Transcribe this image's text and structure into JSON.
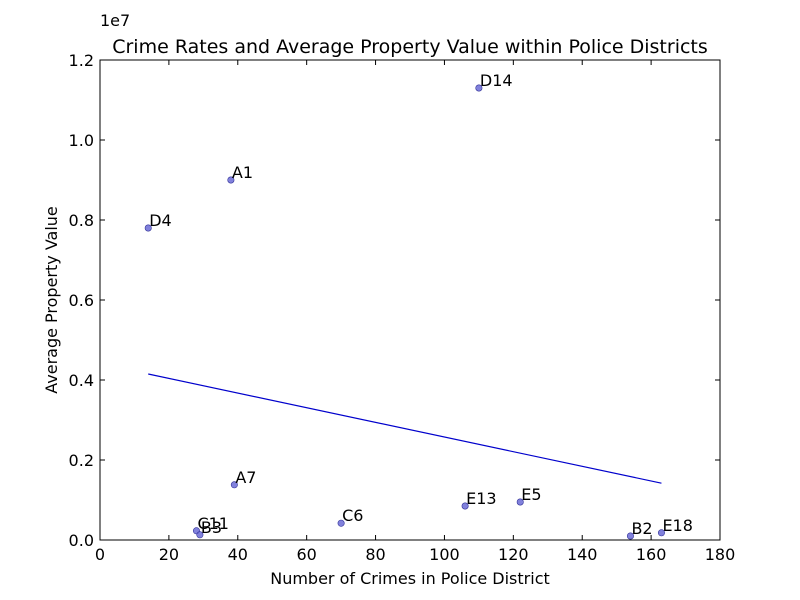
{
  "chart_data": {
    "type": "scatter",
    "title": "Crime Rates and Average Property Value within Police Districts",
    "xlabel": "Number of Crimes in Police District",
    "ylabel": "Average Property Value",
    "y_offset_label": "1e7",
    "xlim": [
      0,
      180
    ],
    "ylim": [
      0,
      12000000
    ],
    "x_ticks": [
      0,
      20,
      40,
      60,
      80,
      100,
      120,
      140,
      160,
      180
    ],
    "x_tick_labels": [
      "0",
      "20",
      "40",
      "60",
      "80",
      "100",
      "120",
      "140",
      "160",
      "180"
    ],
    "y_ticks": [
      0,
      2000000,
      4000000,
      6000000,
      8000000,
      10000000,
      12000000
    ],
    "y_tick_labels": [
      "0.0",
      "0.2",
      "0.4",
      "0.6",
      "0.8",
      "1.0",
      "1.2"
    ],
    "grid": false,
    "point_color": "#6b6bd6",
    "line_color": "#0000cc",
    "points": [
      {
        "label": "D14",
        "x": 110,
        "y": 11300000
      },
      {
        "label": "A1",
        "x": 38,
        "y": 9000000
      },
      {
        "label": "D4",
        "x": 14,
        "y": 7800000
      },
      {
        "label": "A7",
        "x": 39,
        "y": 1380000
      },
      {
        "label": "C11",
        "x": 28,
        "y": 230000
      },
      {
        "label": "B3",
        "x": 29,
        "y": 130000
      },
      {
        "label": "C6",
        "x": 70,
        "y": 420000
      },
      {
        "label": "E13",
        "x": 106,
        "y": 850000
      },
      {
        "label": "E5",
        "x": 122,
        "y": 950000
      },
      {
        "label": "B2",
        "x": 154,
        "y": 100000
      },
      {
        "label": "E18",
        "x": 163,
        "y": 180000
      }
    ],
    "trend_line": {
      "x": [
        14,
        163
      ],
      "y": [
        4150000,
        1420000
      ]
    }
  }
}
